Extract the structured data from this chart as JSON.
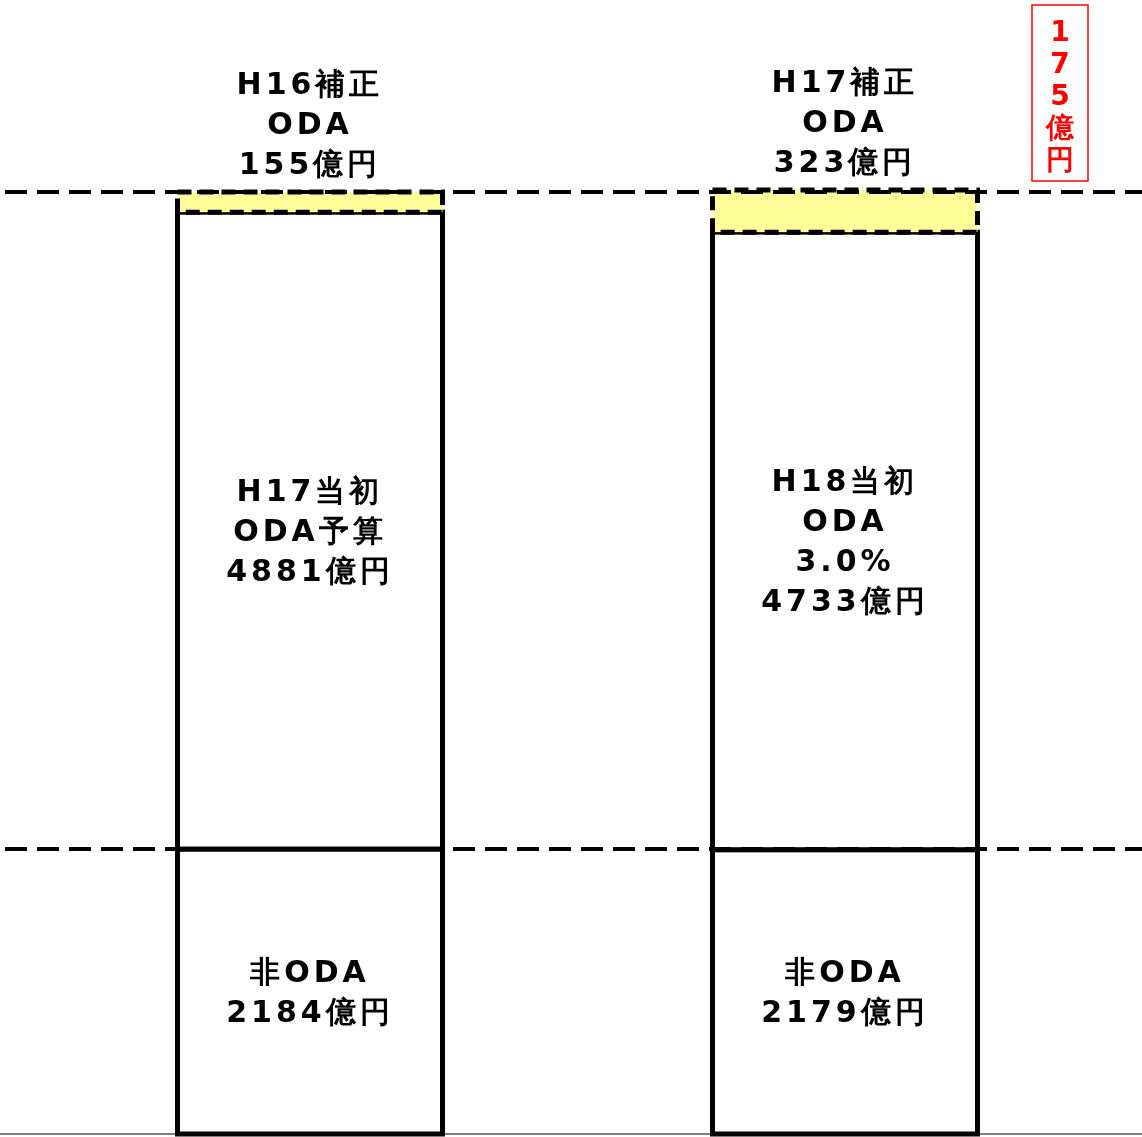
{
  "chart_data": {
    "type": "bar",
    "stacked": true,
    "categories": [
      null,
      null
    ],
    "series": [
      {
        "color": "#ffffff",
        "values": [
          2184,
          2179
        ],
        "value_labels": [
          "非ODA\n2184億円",
          "非ODA\n2179億円"
        ]
      },
      {
        "color": "#ffffff",
        "values": [
          4881,
          4733
        ],
        "value_labels": [
          "H17当初\nODA予算\n4881億円",
          "H18当初\nODA\n3.0%\n4733億円"
        ]
      },
      {
        "color": "#ffff99",
        "values": [
          155,
          323
        ],
        "value_labels": [
          "H16補正\nODA\n155億円",
          "H17補正\nODA\n323億円"
        ],
        "line_style": "dashed"
      }
    ],
    "ref_lines": [
      {
        "axis": "y",
        "value": 2184
      },
      {
        "axis": "y",
        "value": 7220
      }
    ],
    "annotations": [
      "175億円"
    ]
  }
}
